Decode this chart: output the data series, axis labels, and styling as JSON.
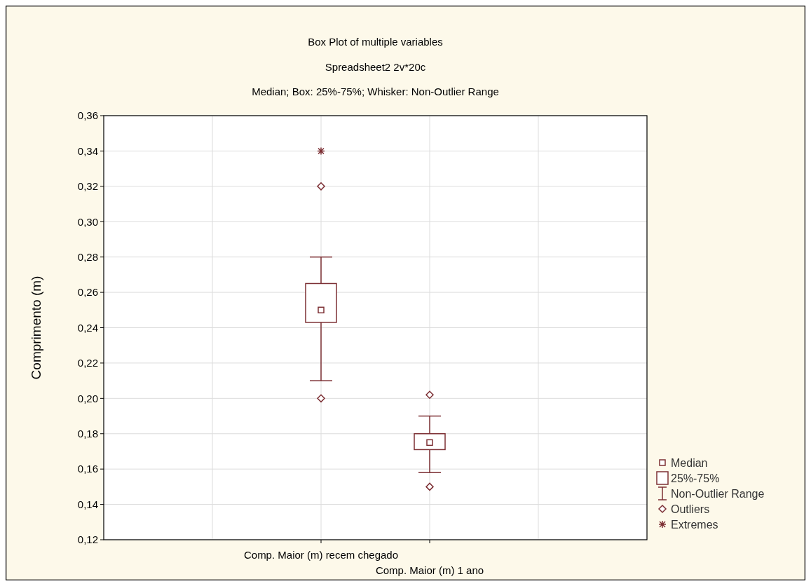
{
  "chart_data": {
    "type": "box",
    "title": "Box Plot of multiple variables",
    "subtitle": "Spreadsheet2 2v*20c\nMedian; Box: 25%-75%; Whisker: Non-Outlier Range",
    "ylabel": "Comprimento  (m)",
    "categories": [
      "Comp. Maior (m) recem chegado",
      "Comp. Maior (m) 1 ano"
    ],
    "ylim": [
      0.12,
      0.36
    ],
    "yticks": [
      {
        "value": 0.12,
        "label": "0,12"
      },
      {
        "value": 0.14,
        "label": "0,14"
      },
      {
        "value": 0.16,
        "label": "0,16"
      },
      {
        "value": 0.18,
        "label": "0,18"
      },
      {
        "value": 0.2,
        "label": "0,20"
      },
      {
        "value": 0.22,
        "label": "0,22"
      },
      {
        "value": 0.24,
        "label": "0,24"
      },
      {
        "value": 0.26,
        "label": "0,26"
      },
      {
        "value": 0.28,
        "label": "0,28"
      },
      {
        "value": 0.3,
        "label": "0,30"
      },
      {
        "value": 0.32,
        "label": "0,32"
      },
      {
        "value": 0.34,
        "label": "0,34"
      },
      {
        "value": 0.36,
        "label": "0,36"
      }
    ],
    "grid": true,
    "legend": "bottom right",
    "annotations": [
      "Median",
      "25%-75%",
      "Non-Outlier Range"
    ],
    "series": [
      {
        "color": "#7d3035",
        "boxes": [
          {
            "low": 0.21,
            "q1": 0.243,
            "median": 0.25,
            "q3": 0.265,
            "high": 0.28
          },
          {
            "low": 0.158,
            "q1": 0.171,
            "median": 0.175,
            "q3": 0.18,
            "high": 0.19
          }
        ]
      },
      {
        "type": "scatter",
        "name": "Outliers",
        "color": "#7d3035",
        "marker": "diamond",
        "x": [
          "Comp. Maior (m) recem chegado",
          "Comp. Maior (m) recem chegado",
          "Comp. Maior (m) 1 ano",
          "Comp. Maior (m) 1 ano"
        ],
        "values": [
          0.32,
          0.2,
          0.202,
          0.15
        ]
      },
      {
        "type": "scatter",
        "name": "Extremes",
        "color": "#7d3035",
        "marker": "cross",
        "x": [
          "Comp. Maior (m) recem chegado"
        ],
        "values": [
          0.34
        ]
      }
    ]
  }
}
